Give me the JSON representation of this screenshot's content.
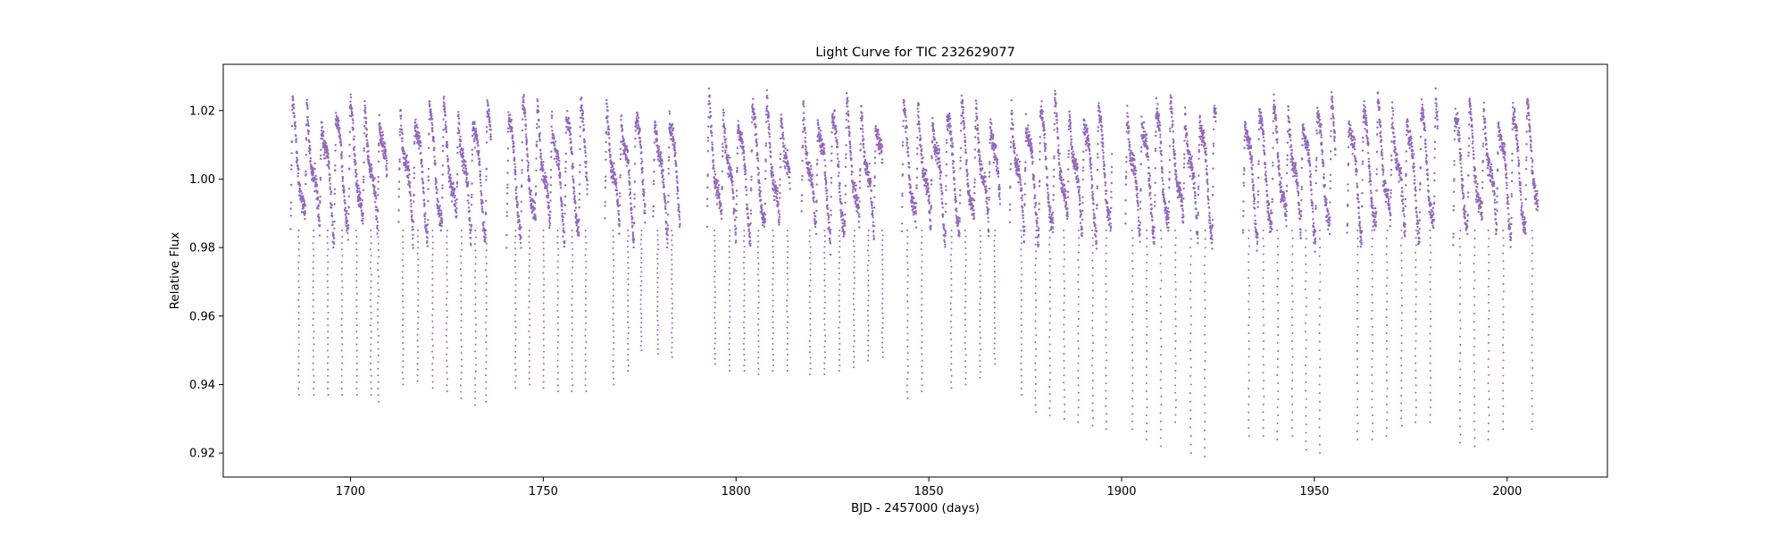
{
  "chart_data": {
    "type": "scatter",
    "title": "Light Curve for TIC 232629077",
    "xlabel": "BJD - 2457000 (days)",
    "ylabel": "Relative Flux",
    "xlim": [
      1667,
      2026
    ],
    "ylim": [
      0.913,
      1.0335
    ],
    "xticks": [
      1700,
      1750,
      1800,
      1850,
      1900,
      1950,
      2000
    ],
    "yticks": [
      0.92,
      0.94,
      0.96,
      0.98,
      1.0,
      1.02
    ],
    "ytick_labels": [
      "0.92",
      "0.94",
      "0.96",
      "0.98",
      "1.00",
      "1.02"
    ],
    "grid": false,
    "legend": "none",
    "marker_color": "#9467bd",
    "series": [
      {
        "segments": [
          [
            1684.5,
            1709.5
          ],
          [
            1712.5,
            1736.5
          ],
          [
            1740.5,
            1761.5
          ],
          [
            1766.0,
            1776.5
          ],
          [
            1778.5,
            1785.5
          ],
          [
            1792.5,
            1814.0
          ],
          [
            1817.0,
            1838.0
          ],
          [
            1843.0,
            1868.5
          ],
          [
            1871.0,
            1897.5
          ],
          [
            1901.0,
            1924.5
          ],
          [
            1931.5,
            1955.5
          ],
          [
            1958.5,
            1982.0
          ],
          [
            1986.0,
            2008.0
          ]
        ],
        "dips": [
          [
            1686.6,
            0.937
          ],
          [
            1690.4,
            0.937
          ],
          [
            1694.1,
            0.937
          ],
          [
            1697.8,
            0.937
          ],
          [
            1701.6,
            0.937
          ],
          [
            1705.3,
            0.937
          ],
          [
            1707.2,
            0.935
          ],
          [
            1713.6,
            0.94
          ],
          [
            1717.5,
            0.941
          ],
          [
            1721.3,
            0.939
          ],
          [
            1725.0,
            0.938
          ],
          [
            1728.7,
            0.936
          ],
          [
            1732.4,
            0.934
          ],
          [
            1735.2,
            0.935
          ],
          [
            1742.8,
            0.939
          ],
          [
            1746.4,
            0.94
          ],
          [
            1750.1,
            0.939
          ],
          [
            1753.8,
            0.938
          ],
          [
            1757.5,
            0.938
          ],
          [
            1761.0,
            0.938
          ],
          [
            1768.2,
            0.94
          ],
          [
            1772.0,
            0.944
          ],
          [
            1775.4,
            0.95
          ],
          [
            1779.7,
            0.949
          ],
          [
            1783.4,
            0.948
          ],
          [
            1794.5,
            0.946
          ],
          [
            1798.3,
            0.944
          ],
          [
            1802.1,
            0.944
          ],
          [
            1805.8,
            0.943
          ],
          [
            1809.6,
            0.944
          ],
          [
            1813.3,
            0.944
          ],
          [
            1819.2,
            0.943
          ],
          [
            1823.0,
            0.943
          ],
          [
            1826.8,
            0.944
          ],
          [
            1830.6,
            0.945
          ],
          [
            1834.3,
            0.947
          ],
          [
            1838.0,
            0.948
          ],
          [
            1844.5,
            0.936
          ],
          [
            1848.2,
            0.938
          ],
          [
            1855.8,
            0.939
          ],
          [
            1859.5,
            0.94
          ],
          [
            1863.3,
            0.942
          ],
          [
            1867.1,
            0.946
          ],
          [
            1874.0,
            0.937
          ],
          [
            1877.7,
            0.932
          ],
          [
            1881.4,
            0.931
          ],
          [
            1885.1,
            0.93
          ],
          [
            1888.8,
            0.929
          ],
          [
            1892.5,
            0.928
          ],
          [
            1896.0,
            0.927
          ],
          [
            1902.8,
            0.927
          ],
          [
            1906.5,
            0.924
          ],
          [
            1910.2,
            0.922
          ],
          [
            1914.0,
            0.929
          ],
          [
            1917.9,
            0.92
          ],
          [
            1921.6,
            0.919
          ],
          [
            1933.0,
            0.925
          ],
          [
            1936.8,
            0.925
          ],
          [
            1940.5,
            0.924
          ],
          [
            1944.3,
            0.925
          ],
          [
            1947.8,
            0.921
          ],
          [
            1951.4,
            0.92
          ],
          [
            1961.2,
            0.924
          ],
          [
            1965.0,
            0.924
          ],
          [
            1968.8,
            0.925
          ],
          [
            1972.6,
            0.928
          ],
          [
            1976.3,
            0.929
          ],
          [
            1980.1,
            0.929
          ],
          [
            1987.8,
            0.923
          ],
          [
            1991.5,
            0.922
          ],
          [
            1995.2,
            0.924
          ],
          [
            1999.0,
            0.927
          ],
          [
            2006.5,
            0.927
          ]
        ],
        "baseline_range": [
          0.985,
          1.02
        ],
        "period_days": 3.75
      }
    ]
  }
}
